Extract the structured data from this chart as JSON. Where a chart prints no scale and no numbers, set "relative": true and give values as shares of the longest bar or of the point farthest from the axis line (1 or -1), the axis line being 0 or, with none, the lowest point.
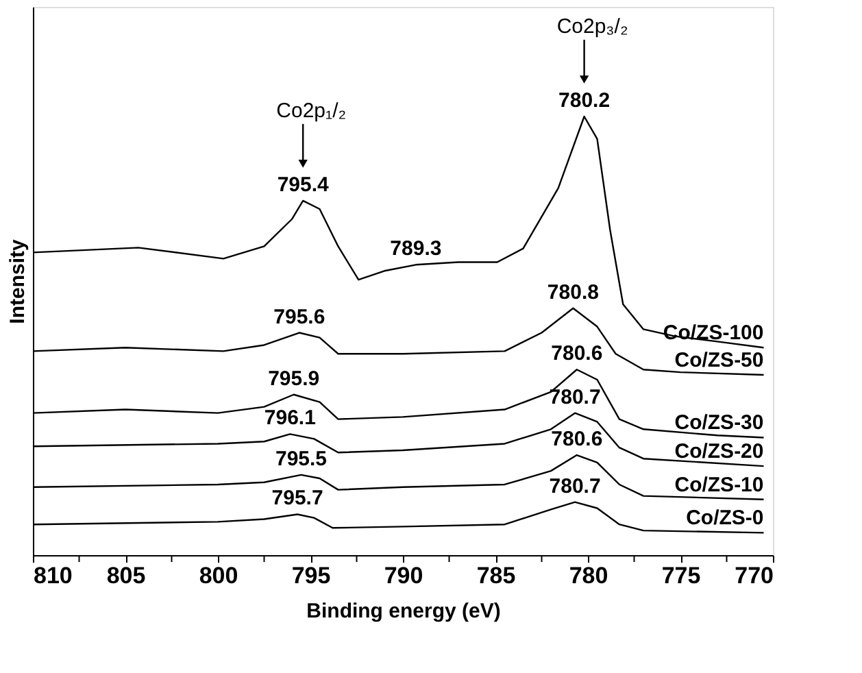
{
  "chart_data": {
    "type": "line",
    "relative": true,
    "xlabel": "Binding energy (eV)",
    "ylabel": "Intensity",
    "xlim": [
      810,
      770
    ],
    "xticks": [
      810,
      {
        "value": 807.5,
        "label": null
      },
      805,
      {
        "value": 802.5,
        "label": null
      },
      800,
      {
        "value": 797.5,
        "label": null
      },
      795,
      {
        "value": 792.5,
        "label": null
      },
      790,
      {
        "value": 787.5,
        "label": null
      },
      785,
      {
        "value": 782.5,
        "label": null
      },
      780,
      {
        "value": 777.5,
        "label": null
      },
      775,
      {
        "value": 772.5,
        "label": null
      },
      770
    ],
    "grid": false,
    "legend": false,
    "line_style": "solid",
    "marker": "none",
    "series": [
      {
        "name": "Co/ZS-100",
        "color": "#000000",
        "x": [
          810,
          804.3,
          799.7,
          797.5,
          796,
          795.4,
          794.5,
          793.5,
          792.4,
          791,
          789.3,
          787,
          784.9,
          783.5,
          781.6,
          780.2,
          779.5,
          778.8,
          778.1,
          777,
          775.3,
          773,
          770.5
        ],
        "values": [
          0.69,
          0.701,
          0.676,
          0.704,
          0.766,
          0.808,
          0.789,
          0.704,
          0.628,
          0.648,
          0.662,
          0.668,
          0.668,
          0.699,
          0.837,
          1.0,
          0.949,
          0.741,
          0.572,
          0.515,
          0.499,
          0.487,
          0.473
        ]
      },
      {
        "name": "Co/ZS-50",
        "color": "#000000",
        "x": [
          810,
          805,
          799.7,
          797.5,
          795.6,
          794.5,
          793.5,
          790,
          784.5,
          782.5,
          780.8,
          779.5,
          778.5,
          777,
          775,
          770.5
        ],
        "values": [
          0.465,
          0.473,
          0.465,
          0.479,
          0.507,
          0.496,
          0.459,
          0.459,
          0.465,
          0.507,
          0.563,
          0.521,
          0.459,
          0.423,
          0.417,
          0.411
        ]
      },
      {
        "name": "Co/ZS-30",
        "color": "#000000",
        "x": [
          810,
          805,
          800,
          797.5,
          795.9,
          794.5,
          793.5,
          790,
          784.5,
          782,
          780.6,
          779.5,
          778.3,
          777,
          773,
          770.5
        ],
        "values": [
          0.324,
          0.332,
          0.324,
          0.338,
          0.366,
          0.349,
          0.31,
          0.315,
          0.332,
          0.372,
          0.423,
          0.4,
          0.31,
          0.287,
          0.273,
          0.268
        ]
      },
      {
        "name": "Co/ZS-20",
        "color": "#000000",
        "x": [
          810,
          800,
          797.5,
          796.1,
          794.8,
          793.5,
          790,
          784.5,
          782,
          780.7,
          779.5,
          778.3,
          777,
          770.5
        ],
        "values": [
          0.248,
          0.254,
          0.259,
          0.276,
          0.265,
          0.234,
          0.239,
          0.254,
          0.287,
          0.324,
          0.304,
          0.245,
          0.22,
          0.203
        ]
      },
      {
        "name": "Co/ZS-10",
        "color": "#000000",
        "x": [
          810,
          800,
          797.5,
          795.5,
          794.5,
          793.5,
          790,
          784.5,
          782,
          780.6,
          779.5,
          778.3,
          777,
          770.5
        ],
        "values": [
          0.155,
          0.161,
          0.166,
          0.183,
          0.175,
          0.149,
          0.155,
          0.161,
          0.192,
          0.228,
          0.211,
          0.161,
          0.135,
          0.127
        ]
      },
      {
        "name": "Co/ZS-0",
        "color": "#000000",
        "x": [
          810,
          800,
          797.5,
          795.7,
          794.8,
          793.8,
          790,
          784.5,
          782,
          780.7,
          779.5,
          778.3,
          777,
          770.5
        ],
        "values": [
          0.07,
          0.076,
          0.082,
          0.093,
          0.085,
          0.062,
          0.065,
          0.07,
          0.104,
          0.121,
          0.107,
          0.07,
          0.056,
          0.051
        ]
      }
    ],
    "annotations": [
      "Co2p₁/₂",
      "Co2p₃/₂",
      {
        "text": "795.4",
        "x": 795.4,
        "y": 0.808
      },
      {
        "text": "780.2",
        "x": 780.2,
        "y": 1.0
      },
      {
        "text": "789.3",
        "x": 789.3,
        "y": 0.662
      },
      {
        "text": "795.6",
        "x": 795.6,
        "y": 0.507
      },
      {
        "text": "780.8",
        "x": 780.8,
        "y": 0.563
      },
      {
        "text": "795.9",
        "x": 795.9,
        "y": 0.366
      },
      {
        "text": "780.6",
        "x": 780.6,
        "y": 0.423
      },
      {
        "text": "796.1",
        "x": 796.1,
        "y": 0.276
      },
      {
        "text": "780.7",
        "x": 780.7,
        "y": 0.324
      },
      {
        "text": "795.5",
        "x": 795.5,
        "y": 0.183
      },
      {
        "text": "780.6",
        "x": 780.6,
        "y": 0.228
      },
      {
        "text": "795.7",
        "x": 795.7,
        "y": 0.093
      },
      {
        "text": "780.7",
        "x": 780.7,
        "y": 0.121
      }
    ]
  }
}
